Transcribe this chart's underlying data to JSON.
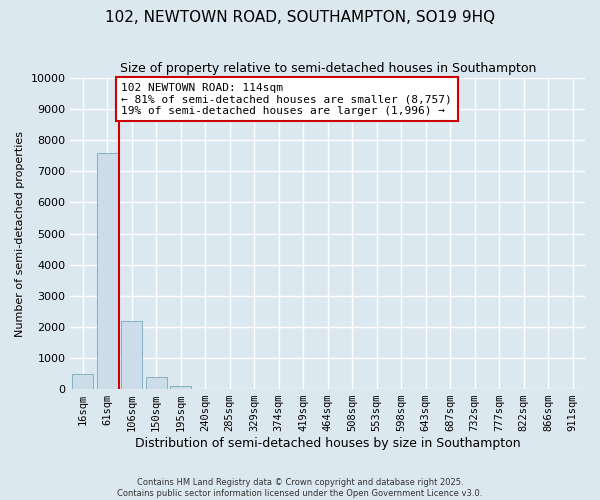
{
  "title": "102, NEWTOWN ROAD, SOUTHAMPTON, SO19 9HQ",
  "subtitle": "Size of property relative to semi-detached houses in Southampton",
  "xlabel": "Distribution of semi-detached houses by size in Southampton",
  "ylabel": "Number of semi-detached properties",
  "bar_labels": [
    "16sqm",
    "61sqm",
    "106sqm",
    "150sqm",
    "195sqm",
    "240sqm",
    "285sqm",
    "329sqm",
    "374sqm",
    "419sqm",
    "464sqm",
    "508sqm",
    "553sqm",
    "598sqm",
    "643sqm",
    "687sqm",
    "732sqm",
    "777sqm",
    "822sqm",
    "866sqm",
    "911sqm"
  ],
  "bar_values": [
    500,
    7600,
    2200,
    390,
    90,
    0,
    0,
    0,
    0,
    0,
    0,
    0,
    0,
    0,
    0,
    0,
    0,
    0,
    0,
    0,
    0
  ],
  "bar_color": "#ccdce8",
  "bar_edge_color": "#7aaabb",
  "vline_x_idx": 1.5,
  "vline_color": "#cc0000",
  "annotation_text": "102 NEWTOWN ROAD: 114sqm\n← 81% of semi-detached houses are smaller (8,757)\n19% of semi-detached houses are larger (1,996) →",
  "annotation_box_facecolor": "#ffffff",
  "annotation_box_edgecolor": "#cc0000",
  "ylim": [
    0,
    10000
  ],
  "yticks": [
    0,
    1000,
    2000,
    3000,
    4000,
    5000,
    6000,
    7000,
    8000,
    9000,
    10000
  ],
  "bg_color": "#dce8f0",
  "plot_bg_color": "#dce8f0",
  "grid_color": "#ffffff",
  "footer_line1": "Contains HM Land Registry data © Crown copyright and database right 2025.",
  "footer_line2": "Contains public sector information licensed under the Open Government Licence v3.0.",
  "title_fontsize": 11,
  "subtitle_fontsize": 9,
  "annotation_fontsize": 8,
  "ylabel_fontsize": 8,
  "xlabel_fontsize": 9
}
